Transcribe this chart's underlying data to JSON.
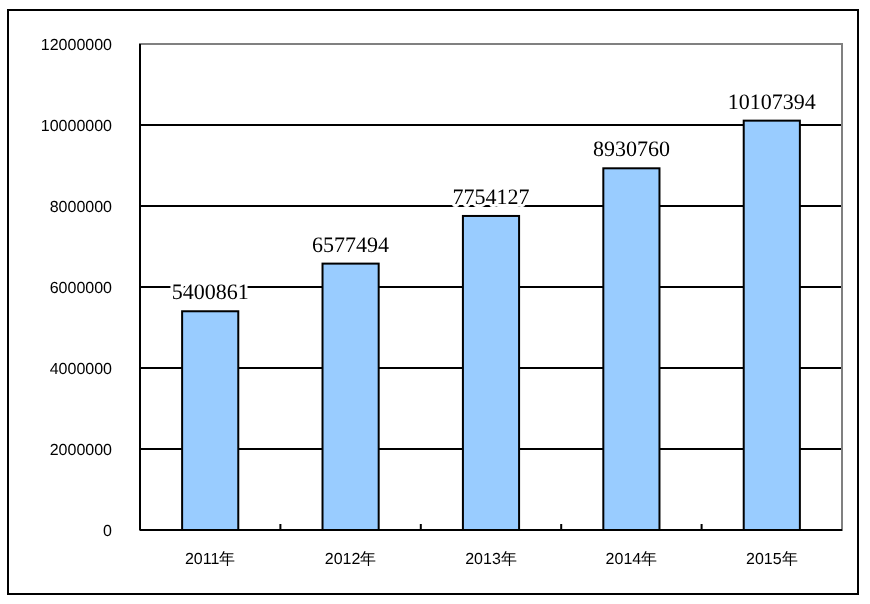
{
  "chart_data": {
    "type": "bar",
    "categories": [
      "2011年",
      "2012年",
      "2013年",
      "2014年",
      "2015年"
    ],
    "values": [
      5400861,
      6577494,
      7754127,
      8930760,
      10107394
    ],
    "color": "#99ccff",
    "ylim": [
      0,
      12000000
    ],
    "yticks": [
      0,
      2000000,
      4000000,
      6000000,
      8000000,
      10000000,
      12000000
    ],
    "grid": "y",
    "data_labels": true
  }
}
